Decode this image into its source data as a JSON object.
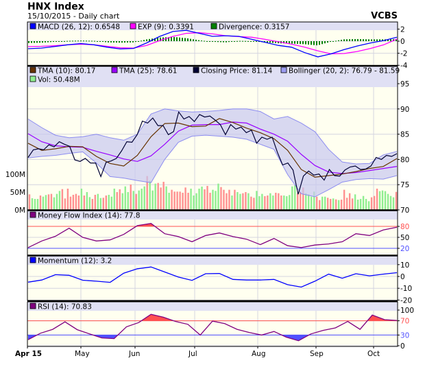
{
  "header": {
    "title": "HNX Index",
    "subtitle": "15/10/2015 - Daily chart",
    "brand": "VCBS"
  },
  "colors": {
    "plot_bg": "#fffff0",
    "legend_bg": "#e0e0f4",
    "grid": "#d4d4e0",
    "macd": "#0000ff",
    "exp": "#ff00ff",
    "divergence": "#008000",
    "tma10": "#663300",
    "tma25": "#9900ff",
    "close": "#000033",
    "bollinger_fill": "#c8c8f0",
    "bollinger_line": "#8c8cf0",
    "vol_up": "#90ee90",
    "vol_down": "#ff9090",
    "mfi": "#800080",
    "momentum": "#0000ff",
    "rsi": "#800080",
    "overbought": "#ff5050",
    "oversold": "#5050ff"
  },
  "x_axis": {
    "labels": [
      "Apr 15",
      "May",
      "Jun",
      "Jul",
      "Aug",
      "Sep",
      "Oct"
    ]
  },
  "chart_data": [
    {
      "type": "line",
      "panel": "MACD",
      "legend": [
        {
          "label": "MACD (26, 12): 0.6548",
          "color": "#0000ff"
        },
        {
          "label": "EXP (9): 0.3391",
          "color": "#ff00ff"
        },
        {
          "label": "Divergence: 0.3157",
          "color": "#008000"
        }
      ],
      "yticks": [
        {
          "label": "2",
          "value": 2
        },
        {
          "label": "0",
          "value": 0
        },
        {
          "label": "-2",
          "value": -2
        },
        {
          "label": "-4",
          "value": -4
        }
      ],
      "ylim": [
        -4,
        2.7
      ],
      "macd": [
        -1.25,
        -1.15,
        -0.9,
        -0.6,
        -0.4,
        -0.6,
        -1.0,
        -1.3,
        -1.2,
        -0.3,
        0.8,
        1.6,
        1.8,
        1.3,
        0.8,
        0.9,
        0.8,
        0.3,
        -0.2,
        -0.7,
        -1.0,
        -1.9,
        -2.6,
        -2.1,
        -1.4,
        -0.8,
        -0.3,
        0.1,
        0.65
      ],
      "exp": [
        -0.9,
        -0.85,
        -0.75,
        -0.6,
        -0.5,
        -0.6,
        -0.85,
        -1.1,
        -1.15,
        -0.7,
        0.1,
        0.8,
        1.3,
        1.4,
        1.2,
        0.9,
        0.75,
        0.65,
        0.3,
        -0.1,
        -0.5,
        -1.0,
        -1.6,
        -2.1,
        -2.05,
        -1.7,
        -1.2,
        -0.6,
        0.34
      ],
      "divergence": [
        -0.3,
        -0.25,
        -0.1,
        0.05,
        0.1,
        0.05,
        -0.2,
        -0.25,
        -0.2,
        0.3,
        0.6,
        0.7,
        0.5,
        0.15,
        -0.1,
        -0.2,
        0.05,
        0.0,
        -0.2,
        -0.35,
        -0.4,
        -0.5,
        -0.7,
        -0.1,
        0.3,
        0.35,
        0.3,
        0.3,
        0.32
      ]
    },
    {
      "type": "line",
      "panel": "Price",
      "legend": [
        {
          "label": "TMA (10): 80.17",
          "color": "#663300"
        },
        {
          "label": "TMA (25): 78.61",
          "color": "#9900ff"
        },
        {
          "label": "Closing Price: 81.14",
          "color": "#000033"
        },
        {
          "label": "Bollinger (20, 2): 76.79 - 81.59",
          "color": "#9c9cf0"
        },
        {
          "label": "Vol: 50.48M",
          "color": "#90ee90"
        }
      ],
      "yticks": [
        {
          "label": "95",
          "value": 95
        },
        {
          "label": "90",
          "value": 90
        },
        {
          "label": "85",
          "value": 85
        },
        {
          "label": "80",
          "value": 80
        },
        {
          "label": "75",
          "value": 75
        },
        {
          "label": "70",
          "value": 70
        }
      ],
      "vol_ticks": [
        {
          "label": "100M",
          "value": 100
        },
        {
          "label": "50M",
          "value": 50
        },
        {
          "label": "0M",
          "value": 0
        }
      ],
      "ylim": [
        70,
        95
      ],
      "close": [
        80.4,
        81.9,
        82.1,
        81.9,
        82.9,
        82.5,
        83.5,
        83.0,
        82.6,
        79.9,
        79.6,
        80.2,
        79.3,
        79.3,
        76.6,
        79.4,
        79.7,
        80.2,
        81.7,
        83.5,
        83.4,
        84.9,
        87.6,
        87.2,
        88.2,
        86.7,
        86.7,
        84.9,
        85.5,
        89.4,
        88.0,
        88.5,
        87.5,
        88.9,
        88.4,
        88.6,
        87.8,
        86.9,
        84.9,
        86.9,
        86.0,
        86.4,
        85.3,
        85.8,
        83.2,
        84.4,
        84.0,
        84.4,
        81.4,
        78.9,
        79.3,
        77.9,
        73.1,
        76.7,
        77.7,
        76.9,
        77.1,
        75.9,
        78.0,
        76.8,
        76.7,
        77.9,
        78.5,
        78.7,
        78.0,
        78.1,
        78.7,
        80.4,
        80.0,
        80.8,
        80.6,
        81.14
      ],
      "tma10": [
        83.2,
        81.8,
        82.1,
        82.6,
        82.5,
        80.6,
        79.2,
        78.7,
        80.8,
        84.5,
        87.1,
        87.2,
        86.5,
        86.6,
        88.1,
        87.3,
        86.2,
        85.3,
        84.1,
        81.8,
        78.0,
        76.5,
        76.8,
        77.1,
        77.6,
        78.2,
        78.6,
        80.17
      ],
      "tma25": [
        85.1,
        83.5,
        82.7,
        82.5,
        82.4,
        81.6,
        80.9,
        80.1,
        79.6,
        80.7,
        83.0,
        85.6,
        86.8,
        86.9,
        86.9,
        87.4,
        87.2,
        86.0,
        85.0,
        83.6,
        81.0,
        78.8,
        77.5,
        77.2,
        77.4,
        77.8,
        78.2,
        78.61
      ],
      "bollinger_upper": [
        88.0,
        86.3,
        84.8,
        84.3,
        84.5,
        85.0,
        84.3,
        83.8,
        85.0,
        89.0,
        90.0,
        89.6,
        89.4,
        89.5,
        89.7,
        90.0,
        90.0,
        89.5,
        88.0,
        88.5,
        87.2,
        85.5,
        82.0,
        79.5,
        79.1,
        79.2,
        80.9,
        81.59
      ],
      "bollinger_lower": [
        80.3,
        80.6,
        80.8,
        81.2,
        81.5,
        79.3,
        76.6,
        76.3,
        75.8,
        75.4,
        80.0,
        83.4,
        84.6,
        84.8,
        84.6,
        84.4,
        84.0,
        83.0,
        82.0,
        77.0,
        73.2,
        72.6,
        74.0,
        75.5,
        76.0,
        76.2,
        76.1,
        76.79
      ],
      "volume_m": [
        43.6,
        32.7,
        30.8,
        30.8,
        40.4,
        37.2,
        41.7,
        43.6,
        44.9,
        35.3,
        44.9,
        53.2,
        58.3,
        32.1,
        59.6,
        37.2,
        42.3,
        44.9,
        40.4,
        59.6,
        40.4,
        50.0,
        35.9,
        30.8,
        42.3,
        44.9,
        33.3,
        34.0,
        40.4,
        42.3,
        37.2,
        59.6,
        50.0,
        57.7,
        46.8,
        66.0,
        50.0,
        71.2,
        53.2,
        44.9,
        54.5,
        59.6,
        66.0,
        94.9,
        82.0,
        54.5,
        73.7,
        75.6,
        62.8,
        78.8,
        66.0,
        48.1,
        56.4,
        51.3,
        51.3,
        51.3,
        48.1,
        62.8,
        48.1,
        59.6,
        40.4,
        46.8,
        59.6,
        65.4,
        57.7,
        67.3,
        48.1,
        56.4,
        53.2,
        73.7,
        64.1,
        56.4,
        46.8,
        56.4,
        40.4,
        56.4,
        50.0,
        44.9,
        46.8,
        50.0,
        46.8,
        37.2,
        34.0,
        53.2,
        38.5,
        44.9,
        38.5,
        40.4,
        46.8,
        40.4,
        48.1,
        46.8,
        40.4,
        40.4,
        38.5,
        41.7,
        66.0,
        69.2,
        46.8,
        50.0,
        62.8,
        46.8,
        43.6,
        37.2,
        51.3,
        37.2,
        27.6,
        37.2,
        37.2,
        34.0,
        30.8,
        32.1,
        29.5,
        27.6,
        28.8,
        56.4,
        34.0,
        46.8,
        32.1,
        43.6,
        28.8,
        30.8,
        39.1,
        30.8,
        24.4,
        35.3,
        39.1,
        59.6,
        52.6,
        54.5,
        52.6,
        44.9,
        39.1,
        35.3,
        50.48
      ],
      "volume_dir": "dgggdggddgggdddddddgdggddggddgggddgggdgdgggdgggdddggdddddddgggggdddgggddddgdggddgddgggddggdddgggggdddggggddggddgdgdddddggggggdddggggggdggggdgg"
    },
    {
      "type": "line",
      "panel": "MFI",
      "legend": [
        {
          "label": "Money Flow Index (14): 77.8",
          "color": "#800080"
        }
      ],
      "yticks": [
        {
          "label": "80",
          "value": 80,
          "color": "#ff5050"
        },
        {
          "label": "50",
          "value": 50
        },
        {
          "label": "20",
          "value": 20,
          "color": "#5050ff"
        }
      ],
      "thresholds": [
        80,
        20
      ],
      "values": [
        22,
        40,
        53,
        75,
        50,
        40,
        43,
        58,
        82,
        88,
        60,
        52,
        38,
        55,
        62,
        52,
        45,
        30,
        47,
        27,
        22,
        29,
        32,
        38,
        60,
        55,
        70,
        77.8
      ]
    },
    {
      "type": "line",
      "panel": "Momentum",
      "legend": [
        {
          "label": "Momentum (12): 3.2",
          "color": "#0000ff"
        }
      ],
      "yticks": [
        {
          "label": "10",
          "value": 10
        },
        {
          "label": "0",
          "value": 0
        },
        {
          "label": "-10",
          "value": -10
        },
        {
          "label": "-20",
          "value": -20
        }
      ],
      "values": [
        -4.8,
        -3,
        1.5,
        1,
        -3.2,
        -4,
        -5,
        2.8,
        6.5,
        8,
        3.8,
        -0.5,
        -3.3,
        2.3,
        2.5,
        -2.5,
        -3,
        -3,
        -2.5,
        -7,
        -9,
        -4,
        2,
        -1.5,
        2.3,
        0.5,
        2,
        3.2
      ]
    },
    {
      "type": "line",
      "panel": "RSI",
      "legend": [
        {
          "label": "RSI (14): 70.83",
          "color": "#800080"
        }
      ],
      "yticks": [
        {
          "label": "100",
          "value": 100
        },
        {
          "label": "70",
          "value": 70,
          "color": "#ff5050"
        },
        {
          "label": "30",
          "value": 30,
          "color": "#5050ff"
        },
        {
          "label": "0",
          "value": 0
        }
      ],
      "thresholds": [
        70,
        30
      ],
      "values": [
        17,
        35,
        46,
        67,
        45,
        33,
        22,
        20,
        53,
        65,
        88,
        80,
        68,
        60,
        30,
        69,
        62,
        46,
        37,
        30,
        40,
        24,
        14,
        33,
        43,
        50,
        68,
        46,
        86,
        73,
        70.83
      ]
    }
  ]
}
